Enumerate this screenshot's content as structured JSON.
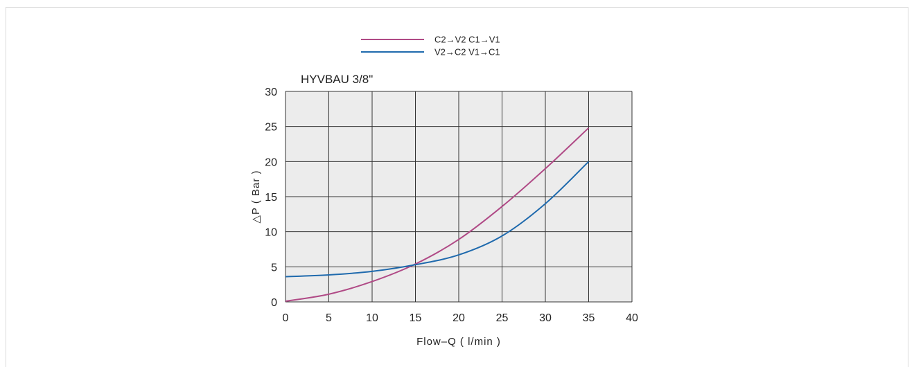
{
  "chart_data": {
    "type": "line",
    "title": "HYVBAU 3/8\"",
    "xlabel": "Flow–Q ( l/min )",
    "ylabel": "△P ( Bar )",
    "xlim": [
      0,
      40
    ],
    "ylim": [
      0,
      30
    ],
    "xticks": [
      0,
      5,
      10,
      15,
      20,
      25,
      30,
      35,
      40
    ],
    "yticks": [
      0,
      5,
      10,
      15,
      20,
      25,
      30
    ],
    "grid": true,
    "legend_position": "top-center",
    "series": [
      {
        "name": "C2→V2  C1→V1",
        "color": "#b04a86",
        "x": [
          0,
          5,
          10,
          15,
          20,
          25,
          30,
          35
        ],
        "y": [
          0.1,
          1.1,
          2.9,
          5.4,
          8.9,
          13.6,
          19.0,
          24.8
        ]
      },
      {
        "name": "V2→C2  V1→C1",
        "color": "#1f6aad",
        "x": [
          0,
          5,
          10,
          15,
          20,
          25,
          30,
          35
        ],
        "y": [
          3.6,
          3.85,
          4.35,
          5.3,
          6.7,
          9.4,
          14.0,
          20.0
        ]
      }
    ]
  }
}
